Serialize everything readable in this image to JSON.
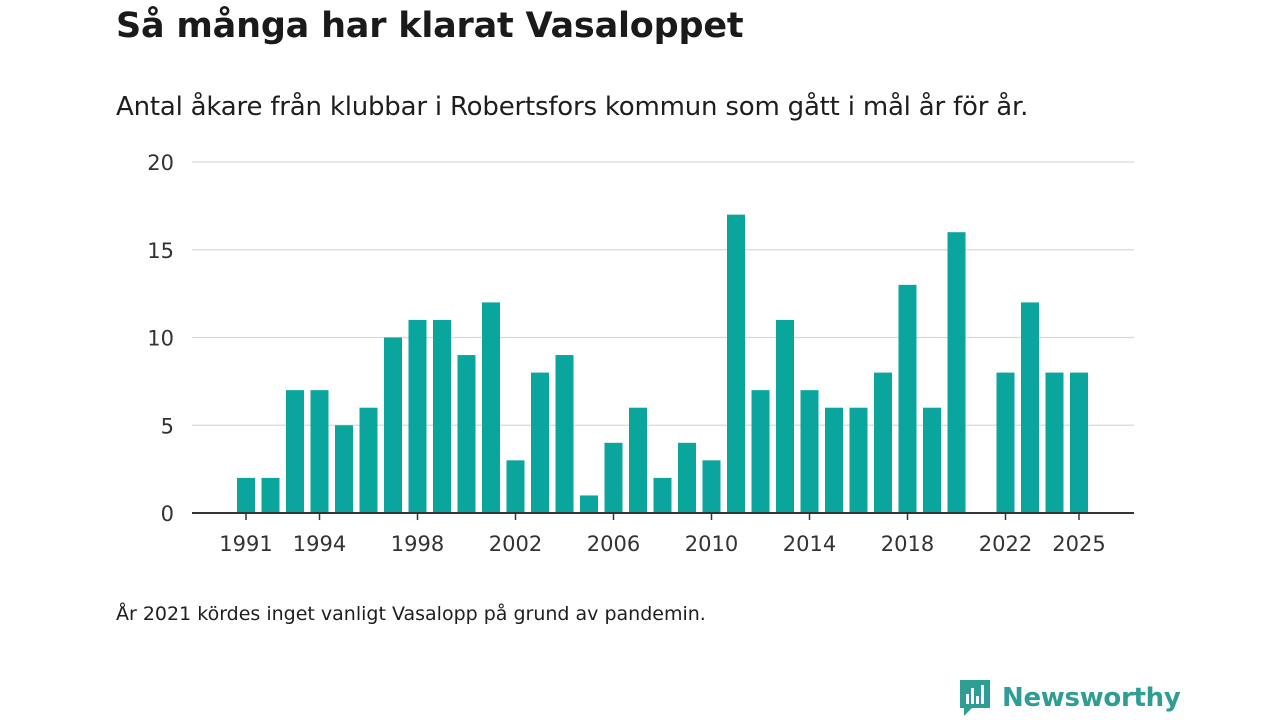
{
  "title": "Så många har klarat Vasaloppet",
  "subtitle": "Antal åkare från klubbar i Robertsfors kommun som gått i mål år för år.",
  "footnote": "År 2021 kördes inget vanligt Vasalopp på grund av pandemin.",
  "brand": {
    "name": "Newsworthy",
    "icon": "newsworthy-logo-icon",
    "color": "#2e9e95"
  },
  "colors": {
    "bar": "#0aa59d",
    "grid": "#d9d9d9",
    "axis": "#333333",
    "text": "#333333"
  },
  "chart_data": {
    "type": "bar",
    "title": "Så många har klarat Vasaloppet",
    "xlabel": "",
    "ylabel": "",
    "ylim": [
      0,
      20
    ],
    "yticks": [
      0,
      5,
      10,
      15,
      20
    ],
    "xticks": [
      1991,
      1994,
      1998,
      2002,
      2006,
      2010,
      2014,
      2018,
      2022,
      2025
    ],
    "categories": [
      1991,
      1992,
      1993,
      1994,
      1995,
      1996,
      1997,
      1998,
      1999,
      2000,
      2001,
      2002,
      2003,
      2004,
      2005,
      2006,
      2007,
      2008,
      2009,
      2010,
      2011,
      2012,
      2013,
      2014,
      2015,
      2016,
      2017,
      2018,
      2019,
      2020,
      2021,
      2022,
      2023,
      2024,
      2025
    ],
    "values": [
      2,
      2,
      7,
      7,
      5,
      6,
      10,
      11,
      11,
      9,
      12,
      3,
      8,
      9,
      1,
      4,
      6,
      2,
      4,
      3,
      17,
      7,
      11,
      7,
      6,
      6,
      8,
      13,
      6,
      16,
      null,
      8,
      12,
      8,
      8
    ],
    "grid": true
  }
}
